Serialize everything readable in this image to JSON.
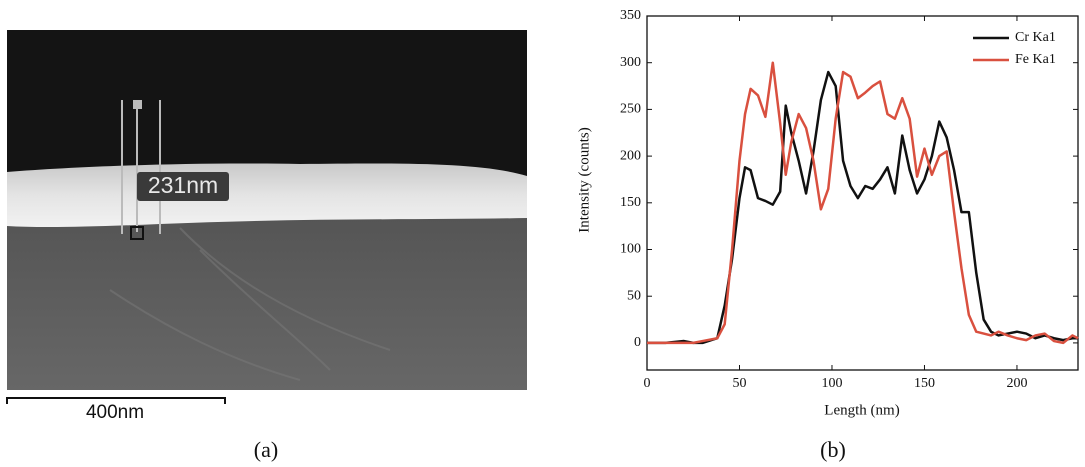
{
  "figure_a": {
    "measurement_label": "231nm",
    "scale_bar_label": "400nm",
    "caption": "(a)"
  },
  "chart_data": {
    "type": "line",
    "caption": "(b)",
    "x_label": "Length (nm)",
    "y_label": "Intensity (counts)",
    "xlim": [
      0,
      233
    ],
    "ylim": [
      -29,
      350
    ],
    "xticks": [
      0,
      50,
      100,
      150,
      200
    ],
    "yticks": [
      0,
      50,
      100,
      150,
      200,
      250,
      300,
      350
    ],
    "legend": "upper right",
    "grid": false,
    "x": [
      0,
      10,
      20,
      25,
      30,
      38,
      42,
      46,
      50,
      53,
      56,
      60,
      64,
      68,
      72,
      75,
      78,
      82,
      86,
      90,
      94,
      98,
      102,
      106,
      110,
      114,
      118,
      122,
      126,
      130,
      134,
      138,
      142,
      146,
      150,
      154,
      158,
      162,
      166,
      170,
      174,
      178,
      182,
      186,
      190,
      195,
      200,
      205,
      210,
      215,
      220,
      225,
      230,
      233
    ],
    "series": [
      {
        "name": "Cr Ka1",
        "color": "#111111",
        "values": [
          0,
          0,
          2,
          0,
          0,
          5,
          40,
          90,
          155,
          188,
          185,
          155,
          152,
          148,
          162,
          254,
          225,
          195,
          160,
          205,
          260,
          290,
          275,
          195,
          168,
          155,
          168,
          165,
          175,
          188,
          160,
          222,
          185,
          160,
          175,
          200,
          237,
          220,
          185,
          140,
          140,
          75,
          25,
          12,
          8,
          10,
          12,
          10,
          5,
          8,
          5,
          3,
          5,
          5
        ]
      },
      {
        "name": "Fe Ka1",
        "color": "#d9503f",
        "values": [
          0,
          0,
          0,
          0,
          2,
          5,
          20,
          100,
          195,
          245,
          272,
          265,
          242,
          300,
          235,
          180,
          215,
          245,
          230,
          195,
          143,
          165,
          240,
          290,
          285,
          262,
          268,
          275,
          280,
          245,
          240,
          262,
          240,
          178,
          208,
          180,
          200,
          205,
          140,
          80,
          30,
          12,
          10,
          8,
          12,
          8,
          5,
          3,
          8,
          10,
          2,
          0,
          8,
          5
        ]
      }
    ]
  }
}
